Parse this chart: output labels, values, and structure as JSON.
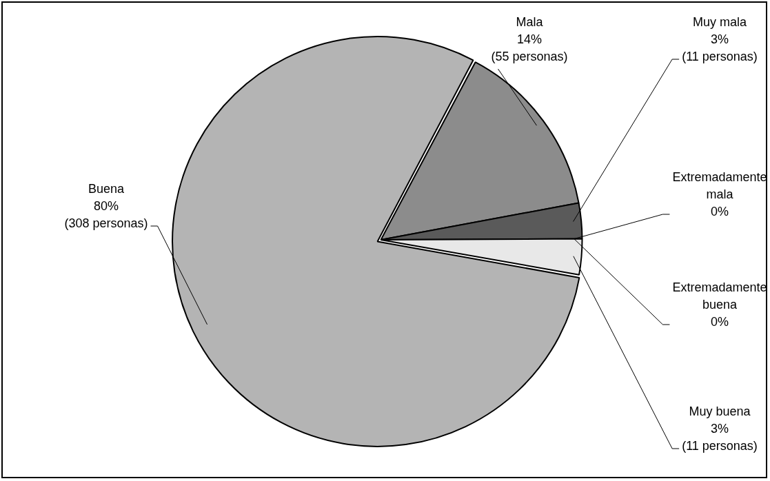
{
  "chart_data": {
    "type": "pie",
    "categories": [
      "Mala",
      "Muy mala",
      "Extremadamente mala",
      "Extremadamente buena",
      "Muy buena",
      "Buena"
    ],
    "values": [
      55,
      11,
      0,
      0,
      11,
      308
    ],
    "value_labels": [
      "14% (55 personas)",
      "3% (11 personas)",
      "0%",
      "0%",
      "3% (11 personas)",
      "80% (308 personas)"
    ],
    "colors": [
      "#8c8c8c",
      "#5a5a5a",
      "#3a3a3a",
      "#d0d0d0",
      "#e8e8e8",
      "#b4b4b4"
    ],
    "legend": false
  }
}
